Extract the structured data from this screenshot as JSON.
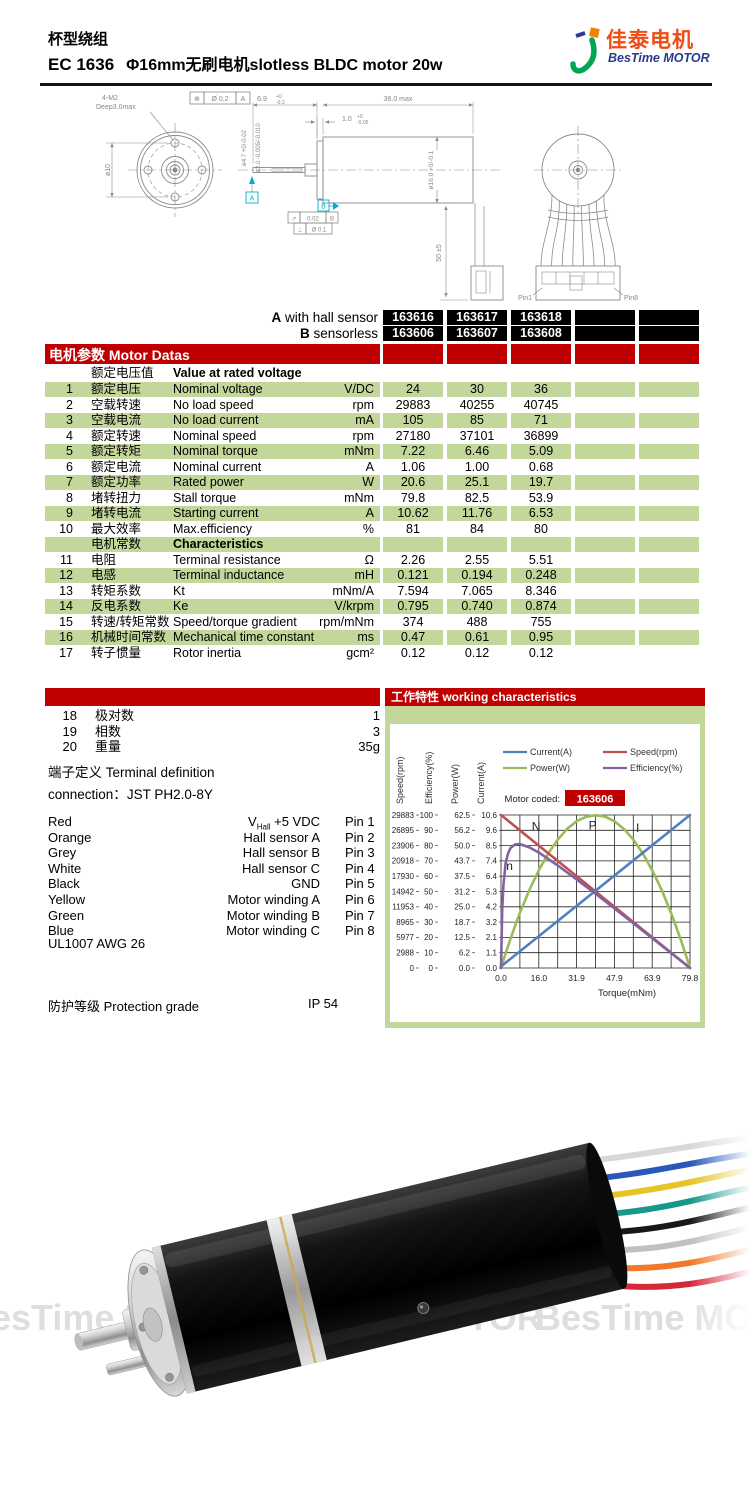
{
  "header": {
    "series": "杯型绕组",
    "model": "EC 1636",
    "subtitle": "Φ16mm无刷电机slotless BLDC motor 20w",
    "logo_cn": "佳泰电机",
    "logo_en": "BesTime MOTOR"
  },
  "drawing": {
    "front": {
      "screws": "4-M2",
      "depth": "Deep3.0max",
      "bolt_circle": "ø10",
      "gdt_sym": "⊕",
      "gdt_tol": "Ø 0.2",
      "gdt_datum": "A"
    },
    "side": {
      "dim_shaft_len": "6.9",
      "tol_shaft_len_t": "+0",
      "tol_shaft_len_b": "-0.3",
      "dim_body_len": "36.0 max",
      "dim_step": "1.0",
      "tol_step_t": "+0",
      "tol_step_b": "-0.05",
      "dim_hub": "ø4.7 +0/-0.02",
      "dim_shaft": "ø2.0 -0.005/-0.010",
      "dim_body_dia": "ø16.0 +0/-0.1",
      "datum_a": "A",
      "datum_b": "B",
      "gdt1_sym": "↗",
      "gdt1_tol": "0.02",
      "gdt1_datum": "B",
      "gdt2_sym": "⊥",
      "gdt2_tol": "Ø 0.1",
      "dim_wire": "50 ±5"
    },
    "rear": {
      "pin1": "Pin1",
      "pin8": "Pin8"
    }
  },
  "models": {
    "a_prefix": "A",
    "a_label": " with hall sensor",
    "a_values": [
      "163616",
      "163617",
      "163618",
      "",
      ""
    ],
    "b_prefix": "B",
    "b_label": " sensorless",
    "b_values": [
      "163606",
      "163607",
      "163608",
      "",
      ""
    ]
  },
  "motor_table": {
    "title": "电机参数 Motor Datas",
    "subheader_cn": "额定电压值",
    "subheader_en": "Value at rated voltage",
    "rated_rows": [
      {
        "no": "1",
        "cn": "额定电压",
        "en": "Nominal voltage",
        "unit": "V/DC",
        "values": [
          "24",
          "30",
          "36",
          "",
          ""
        ]
      },
      {
        "no": "2",
        "cn": "空载转速",
        "en": "No load speed",
        "unit": "rpm",
        "values": [
          "29883",
          "40255",
          "40745",
          "",
          ""
        ]
      },
      {
        "no": "3",
        "cn": "空载电流",
        "en": "No load current",
        "unit": "mA",
        "values": [
          "105",
          "85",
          "71",
          "",
          ""
        ]
      },
      {
        "no": "4",
        "cn": "额定转速",
        "en": "Nominal speed",
        "unit": "rpm",
        "values": [
          "27180",
          "37101",
          "36899",
          "",
          ""
        ]
      },
      {
        "no": "5",
        "cn": "额定转矩",
        "en": "Nominal torque",
        "unit": "mNm",
        "values": [
          "7.22",
          "6.46",
          "5.09",
          "",
          ""
        ]
      },
      {
        "no": "6",
        "cn": "额定电流",
        "en": "Nominal current",
        "unit": "A",
        "values": [
          "1.06",
          "1.00",
          "0.68",
          "",
          ""
        ]
      },
      {
        "no": "7",
        "cn": "额定功率",
        "en": "Rated power",
        "unit": "W",
        "values": [
          "20.6",
          "25.1",
          "19.7",
          "",
          ""
        ]
      },
      {
        "no": "8",
        "cn": "堵转扭力",
        "en": "Stall torque",
        "unit": "mNm",
        "values": [
          "79.8",
          "82.5",
          "53.9",
          "",
          ""
        ]
      },
      {
        "no": "9",
        "cn": "堵转电流",
        "en": "Starting current",
        "unit": "A",
        "values": [
          "10.62",
          "11.76",
          "6.53",
          "",
          ""
        ]
      },
      {
        "no": "10",
        "cn": "最大效率",
        "en": "Max.efficiency",
        "unit": "%",
        "values": [
          "81",
          "84",
          "80",
          "",
          ""
        ]
      }
    ],
    "section_cn": "电机常数",
    "section_en": "Characteristics",
    "char_rows": [
      {
        "no": "11",
        "cn": "电阻",
        "en": "Terminal resistance",
        "unit": "Ω",
        "values": [
          "2.26",
          "2.55",
          "5.51",
          "",
          ""
        ]
      },
      {
        "no": "12",
        "cn": "电感",
        "en": "Terminal inductance",
        "unit": "mH",
        "values": [
          "0.121",
          "0.194",
          "0.248",
          "",
          ""
        ]
      },
      {
        "no": "13",
        "cn": "转矩系数",
        "en": "Kt",
        "unit": "mNm/A",
        "values": [
          "7.594",
          "7.065",
          "8.346",
          "",
          ""
        ]
      },
      {
        "no": "14",
        "cn": "反电系数",
        "en": "Ke",
        "unit": "V/krpm",
        "values": [
          "0.795",
          "0.740",
          "0.874",
          "",
          ""
        ]
      },
      {
        "no": "15",
        "cn": "转速/转矩常数",
        "en": "Speed/torque gradient",
        "unit": "rpm/mNm",
        "values": [
          "374",
          "488",
          "755",
          "",
          ""
        ]
      },
      {
        "no": "16",
        "cn": "机械时间常数",
        "en": "Mechanical time constant",
        "unit": "ms",
        "values": [
          "0.47",
          "0.61",
          "0.95",
          "",
          ""
        ]
      },
      {
        "no": "17",
        "cn": "转子惯量",
        "en": "Rotor inertia",
        "unit": "gcm²",
        "values": [
          "0.12",
          "0.12",
          "0.12",
          "",
          ""
        ]
      }
    ]
  },
  "extra_rows": [
    {
      "no": "18",
      "cn": "极对数",
      "value": "1"
    },
    {
      "no": "19",
      "cn": "相数",
      "value": "3"
    },
    {
      "no": "20",
      "cn": "重量",
      "value": "35g"
    }
  ],
  "terminal": {
    "title_cn": "端子定义",
    "title_en": "Terminal definition",
    "connection_label": "connection：",
    "connection_value": "JST PH2.0-8Y",
    "pins": [
      {
        "color": "Red",
        "signal": "V[Hall] +5 VDC",
        "pin": "Pin 1"
      },
      {
        "color": "Orange",
        "signal": "Hall sensor A",
        "pin": "Pin 2"
      },
      {
        "color": "Grey",
        "signal": "Hall sensor B",
        "pin": "Pin 3"
      },
      {
        "color": "White",
        "signal": "Hall sensor C",
        "pin": "Pin 4"
      },
      {
        "color": "Black",
        "signal": "GND",
        "pin": "Pin 5"
      },
      {
        "color": "Yellow",
        "signal": "Motor winding A",
        "pin": "Pin 6"
      },
      {
        "color": "Green",
        "signal": "Motor winding B",
        "pin": "Pin 7"
      },
      {
        "color": "Blue",
        "signal": "Motor winding C",
        "pin": "Pin 8"
      }
    ],
    "wire": "UL1007 AWG 26"
  },
  "protection": {
    "cn": "防护等级",
    "en": "Protection grade",
    "value": "IP 54"
  },
  "work_panel": {
    "title": "工作特性 working characteristics",
    "motor_coded_label": "Motor coded:",
    "motor_coded": "163606"
  },
  "chart_data": {
    "type": "line",
    "title": "工作特性 working characteristics",
    "xlabel": "Torque(mNm)",
    "xlim": [
      0,
      79.8
    ],
    "x_ticks": [
      "0.0",
      "16.0",
      "31.9",
      "47.9",
      "63.9",
      "79.8"
    ],
    "grid": [
      10,
      10
    ],
    "legend_position": "top",
    "axes": [
      {
        "name": "Speed(rpm)",
        "max": 29883,
        "ticks": [
          "29883",
          "26895",
          "23906",
          "20918",
          "17930",
          "14942",
          "11953",
          "8965",
          "5977",
          "2988",
          "0"
        ]
      },
      {
        "name": "Efficiency(%)",
        "max": 100,
        "ticks": [
          "100",
          "90",
          "80",
          "70",
          "60",
          "50",
          "40",
          "30",
          "20",
          "10",
          "0"
        ]
      },
      {
        "name": "Power(W)",
        "max": 62.5,
        "ticks": [
          "62.5",
          "56.2",
          "50.0",
          "43.7",
          "37.5",
          "31.2",
          "25.0",
          "18.7",
          "12.5",
          "6.2",
          "0.0"
        ]
      },
      {
        "name": "Current(A)",
        "max": 10.6,
        "ticks": [
          "10.6",
          "9.6",
          "8.5",
          "7.4",
          "6.4",
          "5.3",
          "4.2",
          "3.2",
          "2.1",
          "1.1",
          "0.0"
        ]
      }
    ],
    "series": [
      {
        "name": "Power(W)",
        "color": "#9bbb59",
        "axis": 2,
        "points": [
          [
            0,
            0
          ],
          [
            2,
            6.1
          ],
          [
            4,
            11.9
          ],
          [
            6,
            17.4
          ],
          [
            8,
            22.5
          ],
          [
            12,
            31.9
          ],
          [
            16,
            40
          ],
          [
            20,
            46.9
          ],
          [
            24,
            52.5
          ],
          [
            28,
            56.9
          ],
          [
            32,
            60
          ],
          [
            36,
            61.8
          ],
          [
            40,
            62.4
          ],
          [
            44,
            61.8
          ],
          [
            48,
            59.9
          ],
          [
            52,
            56.7
          ],
          [
            56,
            52.3
          ],
          [
            60,
            46.6
          ],
          [
            64,
            39.6
          ],
          [
            68,
            31.5
          ],
          [
            72,
            22
          ],
          [
            76,
            11.3
          ],
          [
            79.8,
            0
          ]
        ]
      },
      {
        "name": "Speed(rpm)",
        "color": "#c0504d",
        "axis": 0,
        "points": [
          [
            0,
            29883
          ],
          [
            79.8,
            0
          ]
        ]
      },
      {
        "name": "Current(A)",
        "color": "#4f81bd",
        "axis": 3,
        "points": [
          [
            0,
            0.105
          ],
          [
            79.8,
            10.62
          ]
        ]
      },
      {
        "name": "Efficiency(%)",
        "color": "#8064a2",
        "axis": 1,
        "points": [
          [
            0,
            0
          ],
          [
            0.5,
            38
          ],
          [
            1,
            54
          ],
          [
            2,
            69
          ],
          [
            3,
            75
          ],
          [
            4,
            78.4
          ],
          [
            6,
            80.8
          ],
          [
            8,
            81
          ],
          [
            12,
            78.8
          ],
          [
            16,
            75.4
          ],
          [
            24,
            67
          ],
          [
            32,
            57.8
          ],
          [
            40,
            48.4
          ],
          [
            48,
            38.8
          ],
          [
            56,
            29.1
          ],
          [
            64,
            19.3
          ],
          [
            72,
            9.6
          ],
          [
            79.8,
            0
          ]
        ]
      }
    ],
    "legend": [
      {
        "name": "Current(A)",
        "color": "#4f81bd"
      },
      {
        "name": "Speed(rpm)",
        "color": "#c0504d"
      },
      {
        "name": "Power(W)",
        "color": "#9bbb59"
      },
      {
        "name": "Efficiency(%)",
        "color": "#8064a2"
      }
    ],
    "annotations": [
      {
        "text": "N",
        "t": 13,
        "f": 0.1
      },
      {
        "text": "P",
        "t": 37,
        "f": 0.095
      },
      {
        "text": "I",
        "t": 57,
        "f": 0.11
      },
      {
        "text": "n",
        "t": 2.2,
        "f": 0.36
      }
    ]
  },
  "photo": {
    "watermark": "BesTime MOTOR"
  },
  "colors": {
    "accent_red": "#c00000",
    "row_green": "#c4d79b",
    "cell_black": "#000000"
  }
}
